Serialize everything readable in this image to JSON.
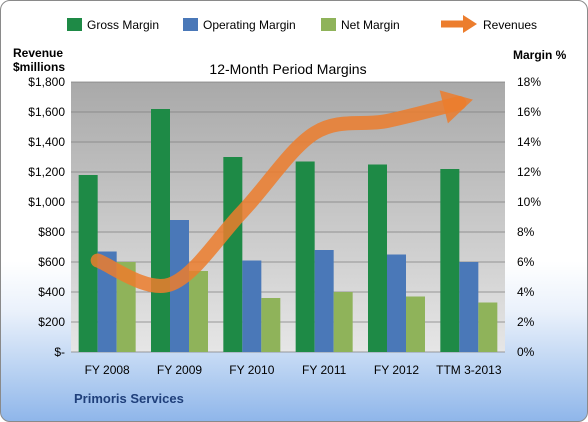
{
  "chart_data": {
    "type": "bar",
    "title": "12-Month Period Margins",
    "company": "Primoris Services",
    "ylabel_left": [
      "Revenue",
      "$millions"
    ],
    "ylabel_right": "Margin %",
    "categories": [
      "FY 2008",
      "FY 2009",
      "FY 2010",
      "FY 2011",
      "FY 2012",
      "TTM 3-2013"
    ],
    "left_axis": {
      "min": 0,
      "max": 1800,
      "step": 200,
      "tick_labels": [
        "$-",
        "$200",
        "$400",
        "$600",
        "$800",
        "$1,000",
        "$1,200",
        "$1,400",
        "$1,600",
        "$1,800"
      ]
    },
    "right_axis": {
      "min": 0,
      "max": 18,
      "step": 2,
      "tick_labels": [
        "0%",
        "2%",
        "4%",
        "6%",
        "8%",
        "10%",
        "12%",
        "14%",
        "16%",
        "18%"
      ]
    },
    "series": [
      {
        "name": "Gross Margin",
        "type": "bar",
        "axis": "right",
        "color": "#1e8a46",
        "values": [
          11.8,
          16.2,
          13.0,
          12.7,
          12.5,
          12.2
        ]
      },
      {
        "name": "Operating Margin",
        "type": "bar",
        "axis": "right",
        "color": "#4a78b8",
        "values": [
          6.7,
          8.8,
          6.1,
          6.8,
          6.5,
          6.0
        ]
      },
      {
        "name": "Net Margin",
        "type": "bar",
        "axis": "right",
        "color": "#8fb35a",
        "values": [
          6.0,
          5.4,
          3.6,
          4.0,
          3.7,
          3.3
        ]
      },
      {
        "name": "Revenues",
        "type": "line",
        "axis": "left",
        "color": "#ec7d2d",
        "values": [
          610,
          450,
          935,
          1460,
          1540,
          1660
        ]
      }
    ],
    "grid": true,
    "legend_position": "top"
  }
}
